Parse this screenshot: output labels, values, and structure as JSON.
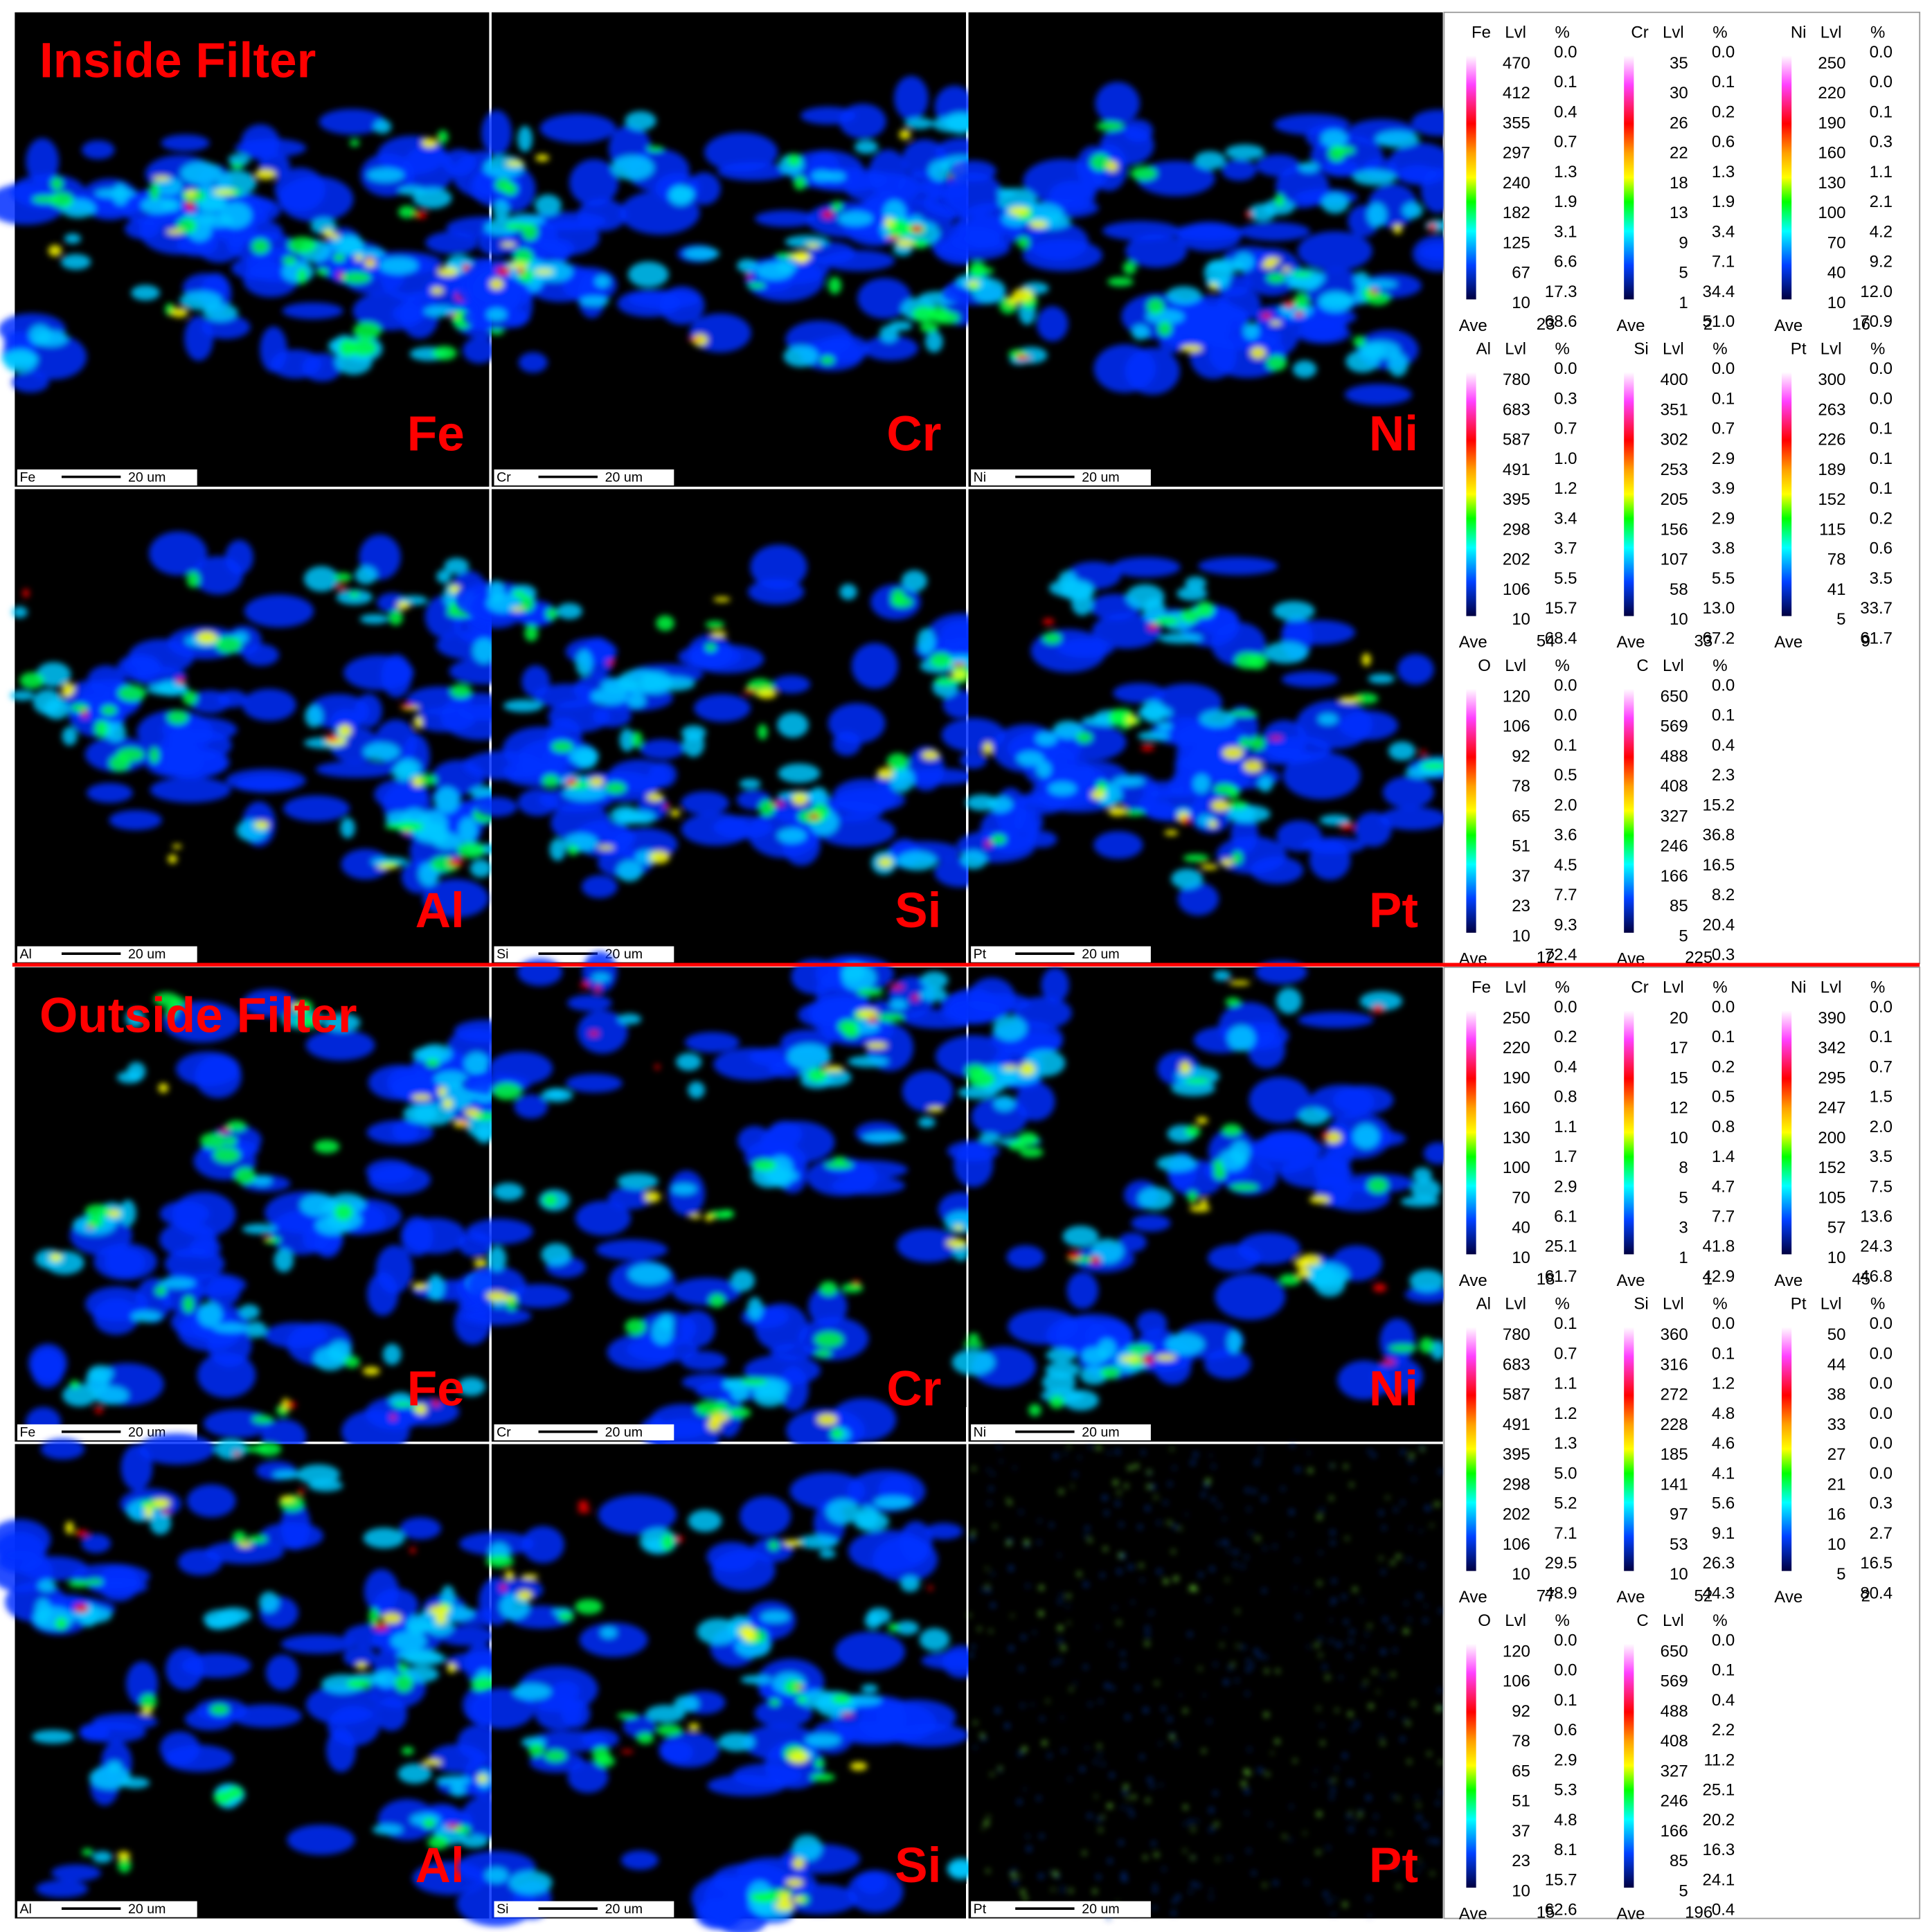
{
  "legend_headers": {
    "level": "Lvl",
    "percent": "%",
    "average": "Ave"
  },
  "scale_bar_text": "20 um",
  "sections": [
    {
      "title": "Inside Filter",
      "maps": [
        "Fe",
        "Cr",
        "Ni",
        "Al",
        "Si",
        "Pt"
      ],
      "legends": [
        {
          "element": "Fe",
          "levels": [
            "470",
            "412",
            "355",
            "297",
            "240",
            "182",
            "125",
            "67",
            "10"
          ],
          "percents": [
            "0.0",
            "0.1",
            "0.4",
            "0.7",
            "1.3",
            "1.9",
            "3.1",
            "6.6",
            "17.3",
            "68.6"
          ],
          "ave": "23"
        },
        {
          "element": "Cr",
          "levels": [
            "35",
            "30",
            "26",
            "22",
            "18",
            "13",
            "9",
            "5",
            "1"
          ],
          "percents": [
            "0.0",
            "0.1",
            "0.2",
            "0.6",
            "1.3",
            "1.9",
            "3.4",
            "7.1",
            "34.4",
            "51.0"
          ],
          "ave": "2"
        },
        {
          "element": "Ni",
          "levels": [
            "250",
            "220",
            "190",
            "160",
            "130",
            "100",
            "70",
            "40",
            "10"
          ],
          "percents": [
            "0.0",
            "0.0",
            "0.1",
            "0.3",
            "1.1",
            "2.1",
            "4.2",
            "9.2",
            "12.0",
            "70.9"
          ],
          "ave": "16"
        },
        {
          "element": "Al",
          "levels": [
            "780",
            "683",
            "587",
            "491",
            "395",
            "298",
            "202",
            "106",
            "10"
          ],
          "percents": [
            "0.0",
            "0.3",
            "0.7",
            "1.0",
            "1.2",
            "3.4",
            "3.7",
            "5.5",
            "15.7",
            "68.4"
          ],
          "ave": "54"
        },
        {
          "element": "Si",
          "levels": [
            "400",
            "351",
            "302",
            "253",
            "205",
            "156",
            "107",
            "58",
            "10"
          ],
          "percents": [
            "0.0",
            "0.1",
            "0.7",
            "2.9",
            "3.9",
            "2.9",
            "3.8",
            "5.5",
            "13.0",
            "67.2"
          ],
          "ave": "33"
        },
        {
          "element": "Pt",
          "levels": [
            "300",
            "263",
            "226",
            "189",
            "152",
            "115",
            "78",
            "41",
            "5"
          ],
          "percents": [
            "0.0",
            "0.0",
            "0.1",
            "0.1",
            "0.1",
            "0.2",
            "0.6",
            "3.5",
            "33.7",
            "61.7"
          ],
          "ave": "9"
        },
        {
          "element": "O",
          "levels": [
            "120",
            "106",
            "92",
            "78",
            "65",
            "51",
            "37",
            "23",
            "10"
          ],
          "percents": [
            "0.0",
            "0.0",
            "0.1",
            "0.5",
            "2.0",
            "3.6",
            "4.5",
            "7.7",
            "9.3",
            "72.4"
          ],
          "ave": "12"
        },
        {
          "element": "C",
          "levels": [
            "650",
            "569",
            "488",
            "408",
            "327",
            "246",
            "166",
            "85",
            "5"
          ],
          "percents": [
            "0.0",
            "0.1",
            "0.4",
            "2.3",
            "15.2",
            "36.8",
            "16.5",
            "8.2",
            "20.4",
            "0.3"
          ],
          "ave": "225"
        }
      ]
    },
    {
      "title": "Outside Filter",
      "maps": [
        "Fe",
        "Cr",
        "Ni",
        "Al",
        "Si",
        "Pt"
      ],
      "legends": [
        {
          "element": "Fe",
          "levels": [
            "250",
            "220",
            "190",
            "160",
            "130",
            "100",
            "70",
            "40",
            "10"
          ],
          "percents": [
            "0.0",
            "0.2",
            "0.4",
            "0.8",
            "1.1",
            "1.7",
            "2.9",
            "6.1",
            "25.1",
            "61.7"
          ],
          "ave": "18"
        },
        {
          "element": "Cr",
          "levels": [
            "20",
            "17",
            "15",
            "12",
            "10",
            "8",
            "5",
            "3",
            "1"
          ],
          "percents": [
            "0.0",
            "0.1",
            "0.2",
            "0.5",
            "0.8",
            "1.4",
            "4.7",
            "7.7",
            "41.8",
            "42.9"
          ],
          "ave": "1"
        },
        {
          "element": "Ni",
          "levels": [
            "390",
            "342",
            "295",
            "247",
            "200",
            "152",
            "105",
            "57",
            "10"
          ],
          "percents": [
            "0.0",
            "0.1",
            "0.7",
            "1.5",
            "2.0",
            "3.5",
            "7.5",
            "13.6",
            "24.3",
            "46.8"
          ],
          "ave": "45"
        },
        {
          "element": "Al",
          "levels": [
            "780",
            "683",
            "587",
            "491",
            "395",
            "298",
            "202",
            "106",
            "10"
          ],
          "percents": [
            "0.1",
            "0.7",
            "1.1",
            "1.2",
            "1.3",
            "5.0",
            "5.2",
            "7.1",
            "29.5",
            "48.9"
          ],
          "ave": "77"
        },
        {
          "element": "Si",
          "levels": [
            "360",
            "316",
            "272",
            "228",
            "185",
            "141",
            "97",
            "53",
            "10"
          ],
          "percents": [
            "0.0",
            "0.1",
            "1.2",
            "4.8",
            "4.6",
            "4.1",
            "5.6",
            "9.1",
            "26.3",
            "44.3"
          ],
          "ave": "52"
        },
        {
          "element": "Pt",
          "levels": [
            "50",
            "44",
            "38",
            "33",
            "27",
            "21",
            "16",
            "10",
            "5"
          ],
          "percents": [
            "0.0",
            "0.0",
            "0.0",
            "0.0",
            "0.0",
            "0.0",
            "0.3",
            "2.7",
            "16.5",
            "80.4"
          ],
          "ave": "2"
        },
        {
          "element": "O",
          "levels": [
            "120",
            "106",
            "92",
            "78",
            "65",
            "51",
            "37",
            "23",
            "10"
          ],
          "percents": [
            "0.0",
            "0.0",
            "0.1",
            "0.6",
            "2.9",
            "5.3",
            "4.8",
            "8.1",
            "15.7",
            "62.6"
          ],
          "ave": "15"
        },
        {
          "element": "C",
          "levels": [
            "650",
            "569",
            "488",
            "408",
            "327",
            "246",
            "166",
            "85",
            "5"
          ],
          "percents": [
            "0.0",
            "0.1",
            "0.4",
            "2.2",
            "11.2",
            "25.1",
            "20.2",
            "16.3",
            "24.1",
            "0.4"
          ],
          "ave": "196"
        }
      ]
    }
  ]
}
